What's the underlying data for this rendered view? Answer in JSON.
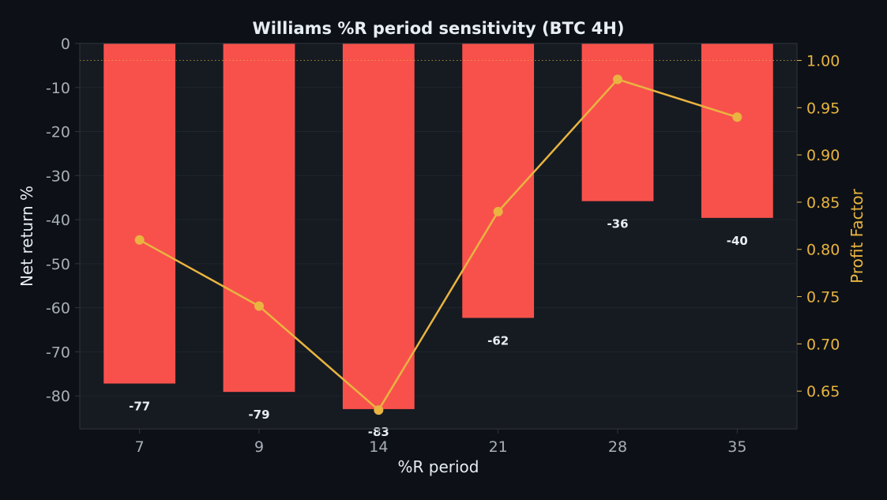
{
  "chart_data": {
    "type": "bar",
    "title": "Williams %R period sensitivity (BTC 4H)",
    "xlabel": "%R period",
    "ylabel": "Net return %",
    "y2label": "Profit Factor",
    "categories": [
      "7",
      "9",
      "14",
      "21",
      "28",
      "35"
    ],
    "series": [
      {
        "type": "bar",
        "axis": "left",
        "values": [
          -77.2,
          -79.1,
          -83.0,
          -62.3,
          -35.8,
          -39.6
        ],
        "labels": [
          "-77",
          "-79",
          "-83",
          "-62",
          "-36",
          "-40"
        ]
      },
      {
        "type": "line",
        "axis": "right",
        "values": [
          0.81,
          0.74,
          0.63,
          0.84,
          0.98,
          0.94
        ]
      }
    ],
    "ylim": [
      -87.5,
      0
    ],
    "y2lim": [
      0.61,
      1.018
    ],
    "yticks": [
      0,
      -10,
      -20,
      -30,
      -40,
      -50,
      -60,
      -70,
      -80
    ],
    "y2ticks": [
      "0.65",
      "0.70",
      "0.75",
      "0.80",
      "0.85",
      "0.90",
      "0.95",
      "1.00"
    ],
    "reference_line": {
      "axis": "right",
      "value": 1.0,
      "style": "dotted"
    },
    "grid": true,
    "colors": {
      "background": "#0d1117",
      "plot_background": "#161b22",
      "bar": "#f8514c",
      "line": "#e9b440",
      "axis_text": "#a8afb8",
      "label_text": "#e6edf3",
      "grid": "#1f252d",
      "spine": "#30363d"
    }
  }
}
